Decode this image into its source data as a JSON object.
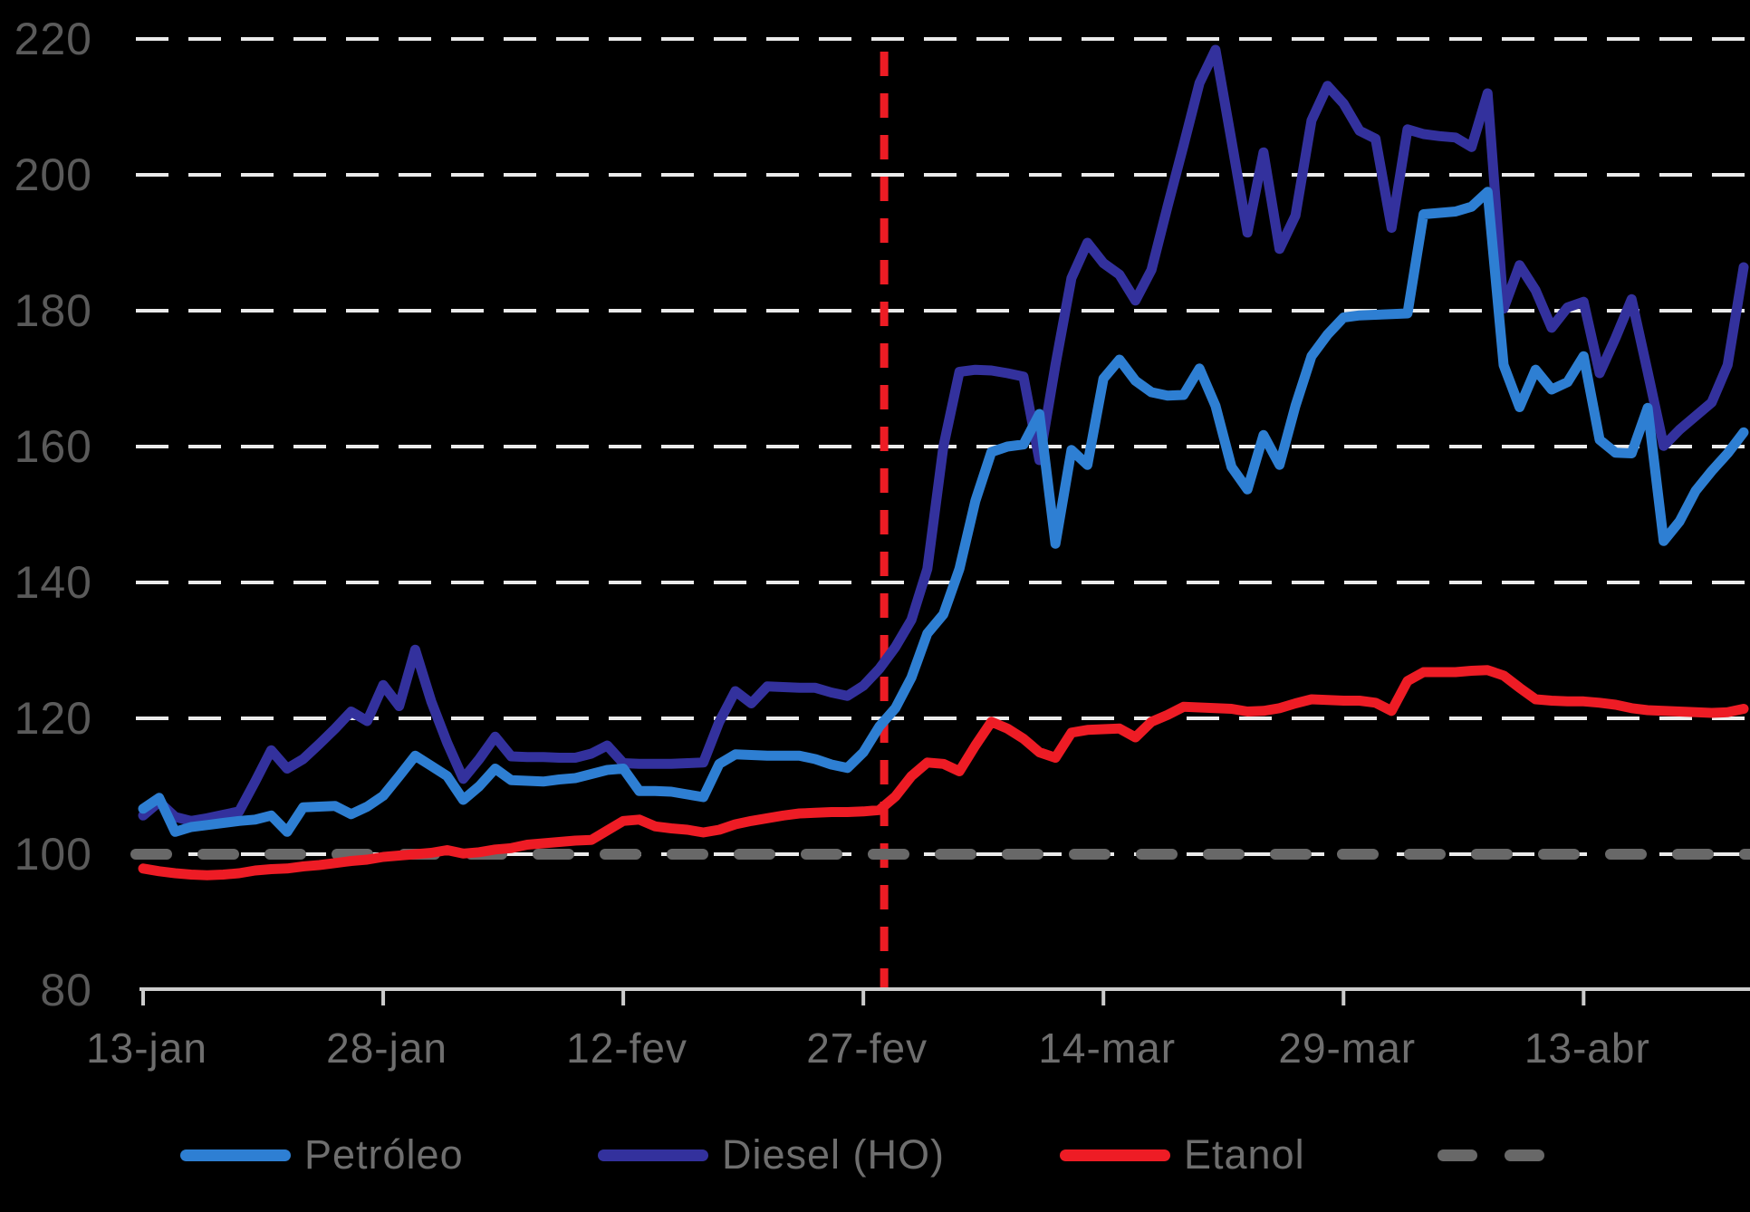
{
  "figure": {
    "background": "#000000",
    "legend": [
      {
        "label": "Petróleo",
        "color": "#2e7fd3",
        "style": "solid"
      },
      {
        "label": "Diesel (HO)",
        "color": "#33319d",
        "style": "solid"
      },
      {
        "label": "Etanol",
        "color": "#ee1c25",
        "style": "solid"
      },
      {
        "label": "",
        "color": "#686868",
        "style": "dashed"
      }
    ]
  },
  "chart_data": {
    "type": "line",
    "title": "",
    "x": {
      "unit": "daily index series (base 100)",
      "n_points": 101,
      "ticks": [
        {
          "label": "13-jan",
          "day": 0
        },
        {
          "label": "28-jan",
          "day": 15
        },
        {
          "label": "12-fev",
          "day": 30
        },
        {
          "label": "27-fev",
          "day": 45
        },
        {
          "label": "14-mar",
          "day": 60
        },
        {
          "label": "29-mar",
          "day": 75
        },
        {
          "label": "13-abr",
          "day": 90
        }
      ]
    },
    "y": {
      "min": 80,
      "max": 220,
      "step": 20,
      "gridlines": [
        100,
        120,
        140,
        160,
        180,
        200,
        220
      ],
      "tick_labels": [
        "80",
        "100",
        "120",
        "140",
        "160",
        "180",
        "200",
        "220"
      ]
    },
    "reference_lines": {
      "baseline": {
        "value": 100,
        "color": "#686868",
        "style": "thick-dashed"
      },
      "event_vline": {
        "day": 46.3,
        "near_tick": "27-fev",
        "color": "#ed1c24",
        "style": "dashed"
      }
    },
    "series": [
      {
        "name": "Petróleo",
        "color": "#2e7fd3",
        "values": [
          106.7,
          108.3,
          103.3,
          104.0,
          104.3,
          104.6,
          104.9,
          105.1,
          105.7,
          103.3,
          106.9,
          107.0,
          107.1,
          105.9,
          107.0,
          108.6,
          111.5,
          114.5,
          113.0,
          111.5,
          108.0,
          110.0,
          112.6,
          110.9,
          110.8,
          110.7,
          111.0,
          111.2,
          111.8,
          112.4,
          112.6,
          109.3,
          109.3,
          109.2,
          108.8,
          108.4,
          113.3,
          114.7,
          114.6,
          114.5,
          114.5,
          114.5,
          114.0,
          113.2,
          112.7,
          115.0,
          118.8,
          121.5,
          126.0,
          132.5,
          135.3,
          142.0,
          152.0,
          159.2,
          160.0,
          160.3,
          164.8,
          145.7,
          159.5,
          157.3,
          170.0,
          172.8,
          169.7,
          168.0,
          167.5,
          167.6,
          171.5,
          166.0,
          157.0,
          153.7,
          161.7,
          157.3,
          166.0,
          173.3,
          176.5,
          179.0,
          179.3,
          179.4,
          179.5,
          179.6,
          194.2,
          194.4,
          194.6,
          195.3,
          197.5,
          172.0,
          165.8,
          171.3,
          168.4,
          169.5,
          173.3,
          161.0,
          159.1,
          159.0,
          165.7,
          146.1,
          149.0,
          153.5,
          156.4,
          159.0,
          162.1
        ]
      },
      {
        "name": "Diesel (HO)",
        "color": "#33319d",
        "values": [
          105.7,
          107.7,
          105.5,
          104.9,
          105.3,
          105.8,
          106.3,
          110.7,
          115.3,
          112.6,
          114.0,
          116.2,
          118.5,
          121.0,
          119.6,
          124.9,
          121.8,
          130.1,
          122.5,
          116.4,
          111.1,
          114.0,
          117.3,
          114.4,
          114.3,
          114.3,
          114.2,
          114.2,
          114.8,
          116.0,
          113.4,
          113.3,
          113.3,
          113.3,
          113.4,
          113.5,
          119.5,
          124.0,
          122.2,
          124.7,
          124.6,
          124.5,
          124.5,
          123.8,
          123.3,
          124.8,
          127.3,
          130.5,
          134.5,
          142.0,
          160.0,
          171.0,
          171.3,
          171.2,
          170.8,
          170.3,
          158.0,
          172.0,
          184.8,
          190.0,
          187.0,
          185.3,
          181.5,
          186.0,
          195.3,
          204.3,
          213.5,
          218.4,
          205.0,
          191.5,
          203.3,
          189.1,
          194.0,
          208.0,
          213.1,
          210.5,
          206.5,
          205.3,
          192.2,
          206.7,
          206.0,
          205.7,
          205.5,
          204.1,
          212.0,
          180.3,
          186.7,
          183.0,
          177.5,
          180.5,
          181.3,
          170.8,
          176.0,
          181.7,
          171.0,
          160.1,
          162.5,
          164.5,
          166.5,
          172.0,
          186.4
        ]
      },
      {
        "name": "Etanol",
        "color": "#ee1c25",
        "values": [
          97.9,
          97.5,
          97.2,
          97.0,
          96.9,
          97.0,
          97.2,
          97.6,
          97.8,
          97.9,
          98.2,
          98.4,
          98.7,
          99.0,
          99.2,
          99.6,
          99.8,
          100.0,
          100.2,
          100.6,
          100.1,
          100.3,
          100.7,
          100.9,
          101.4,
          101.6,
          101.8,
          102.0,
          102.1,
          103.5,
          104.9,
          105.1,
          104.1,
          103.8,
          103.6,
          103.2,
          103.6,
          104.4,
          104.9,
          105.3,
          105.7,
          106.0,
          106.1,
          106.2,
          106.2,
          106.3,
          106.5,
          108.5,
          111.5,
          113.5,
          113.3,
          112.2,
          116.0,
          119.5,
          118.5,
          117.0,
          115.0,
          114.2,
          117.9,
          118.3,
          118.4,
          118.5,
          117.2,
          119.5,
          120.5,
          121.7,
          121.6,
          121.5,
          121.4,
          121.0,
          121.1,
          121.5,
          122.2,
          122.8,
          122.7,
          122.6,
          122.6,
          122.3,
          121.1,
          125.5,
          126.8,
          126.8,
          126.8,
          127.0,
          127.1,
          126.3,
          124.5,
          122.8,
          122.6,
          122.5,
          122.5,
          122.3,
          122.0,
          121.5,
          121.2,
          121.1,
          121.0,
          120.9,
          120.8,
          120.9,
          121.4
        ]
      }
    ],
    "legend_position": "bottom",
    "grid": "horizontal-dashed"
  },
  "colors": {
    "background": "#000000",
    "gridline": "#ebebeb",
    "axis": "#cccccc",
    "y_label": "#5a5a5a",
    "x_label": "#6e6e6e",
    "legend_text": "#6e6e6e"
  }
}
